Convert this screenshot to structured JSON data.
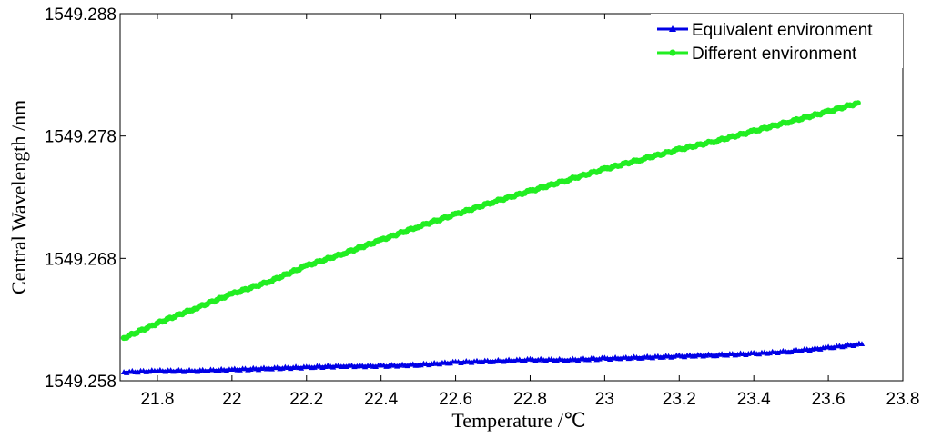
{
  "chart_data": {
    "type": "line",
    "title": "",
    "xlabel": "Temperature /℃",
    "ylabel": "Central Wavelength /nm",
    "xlim": [
      21.7,
      23.8
    ],
    "ylim": [
      1549.258,
      1549.288
    ],
    "xticks": [
      21.8,
      22,
      22.2,
      22.4,
      22.6,
      22.8,
      23,
      23.2,
      23.4,
      23.6,
      23.8
    ],
    "xtick_labels": [
      "21.8",
      "22",
      "22.2",
      "22.4",
      "22.6",
      "22.8",
      "23",
      "23.2",
      "23.4",
      "23.6",
      "23.8"
    ],
    "yticks": [
      1549.258,
      1549.268,
      1549.278,
      1549.288
    ],
    "ytick_labels": [
      "1549.258",
      "1549.268",
      "1549.278",
      "1549.288"
    ],
    "grid": false,
    "legend_position": "top-right",
    "series": [
      {
        "name": "Equivalent environment",
        "color": "#0000e6",
        "marker": "triangle",
        "x": [
          21.71,
          21.8,
          21.9,
          22.0,
          22.1,
          22.2,
          22.3,
          22.4,
          22.5,
          22.6,
          22.7,
          22.8,
          22.9,
          23.0,
          23.1,
          23.2,
          23.3,
          23.4,
          23.5,
          23.6,
          23.69
        ],
        "y": [
          1549.2587,
          1549.2588,
          1549.2588,
          1549.2589,
          1549.259,
          1549.2591,
          1549.2592,
          1549.2592,
          1549.2593,
          1549.2595,
          1549.2596,
          1549.2597,
          1549.2597,
          1549.2598,
          1549.2599,
          1549.26,
          1549.2601,
          1549.2602,
          1549.2604,
          1549.2607,
          1549.261
        ]
      },
      {
        "name": "Different environment",
        "color": "#22ee22",
        "marker": "circle",
        "x": [
          21.71,
          21.8,
          21.9,
          22.0,
          22.1,
          22.2,
          22.3,
          22.4,
          22.5,
          22.6,
          22.7,
          22.8,
          22.9,
          23.0,
          23.1,
          23.2,
          23.3,
          23.4,
          23.5,
          23.6,
          23.68
        ],
        "y": [
          1549.2615,
          1549.2627,
          1549.2639,
          1549.2651,
          1549.2661,
          1549.2674,
          1549.2684,
          1549.2695,
          1549.2706,
          1549.2716,
          1549.2726,
          1549.2735,
          1549.2744,
          1549.2753,
          1549.2761,
          1549.2769,
          1549.2776,
          1549.2784,
          1549.2792,
          1549.28,
          1549.2807
        ]
      }
    ]
  }
}
